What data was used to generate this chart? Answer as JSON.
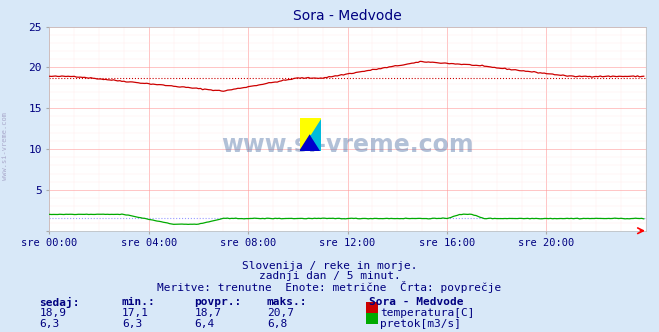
{
  "title": "Sora - Medvode",
  "title_color": "#000080",
  "background_color": "#d8e8f8",
  "plot_bg_color": "#ffffff",
  "grid_color_major": "#ff9999",
  "grid_color_minor": "#ffdddd",
  "xmin": 0,
  "xmax": 288,
  "ymin": 0,
  "ymax": 25,
  "yticks": [
    0,
    5,
    10,
    15,
    20,
    25
  ],
  "xtick_labels": [
    "sre 00:00",
    "sre 04:00",
    "sre 08:00",
    "sre 12:00",
    "sre 16:00",
    "sre 20:00"
  ],
  "xtick_positions": [
    0,
    48,
    96,
    144,
    192,
    240
  ],
  "temp_avg": 18.7,
  "flow_avg_scaled": 1.5,
  "temp_color": "#cc0000",
  "flow_color": "#00aa00",
  "temp_avg_color": "#cc0000",
  "flow_avg_color": "#9999ff",
  "watermark_text": "www.si-vreme.com",
  "watermark_color": "#4477aa",
  "sub_text1": "Slovenija / reke in morje.",
  "sub_text2": "zadnji dan / 5 minut.",
  "sub_text3": "Meritve: trenutne  Enote: metrične  Črta: povprečje",
  "sub_color": "#000080",
  "legend_title": "Sora - Medvode",
  "legend_title_color": "#000080",
  "legend_temp_label": "temperatura[C]",
  "legend_flow_label": "pretok[m3/s]",
  "table_headers": [
    "sedaj:",
    "min.:",
    "povpr.:",
    "maks.:"
  ],
  "table_temp_vals": [
    "18,9",
    "17,1",
    "18,7",
    "20,7"
  ],
  "table_flow_vals": [
    "6,3",
    "6,3",
    "6,4",
    "6,8"
  ],
  "table_color": "#000080",
  "ylabel_text": "www.si-vreme.com",
  "ylabel_color": "#aaaacc",
  "logo_colors": [
    "#ffff00",
    "#00ffff",
    "#0000cc",
    "#00aadd"
  ]
}
